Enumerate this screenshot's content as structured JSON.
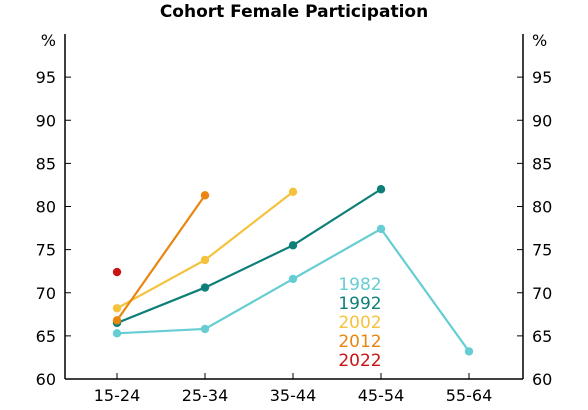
{
  "chart_data": {
    "type": "line",
    "title": "Cohort Female Participation",
    "unit_label": "%",
    "categories": [
      "15-24",
      "25-34",
      "35-44",
      "45-54",
      "55-64"
    ],
    "ylim": [
      60,
      100
    ],
    "yticks": [
      60,
      65,
      70,
      75,
      80,
      85,
      90,
      95
    ],
    "grid": false,
    "legend_position": "inside-lower-right",
    "series": [
      {
        "name": "1982",
        "color": "#66cdd3",
        "values": [
          65.3,
          65.8,
          71.6,
          77.4,
          63.2
        ]
      },
      {
        "name": "1992",
        "color": "#0d7f78",
        "values": [
          66.5,
          70.6,
          75.5,
          82.0,
          null
        ]
      },
      {
        "name": "2002",
        "color": "#f6c23e",
        "values": [
          68.2,
          73.8,
          81.7,
          null,
          null
        ]
      },
      {
        "name": "2012",
        "color": "#e8860f",
        "values": [
          66.8,
          81.3,
          null,
          null,
          null
        ]
      },
      {
        "name": "2022",
        "color": "#c81414",
        "values": [
          72.4,
          null,
          null,
          null,
          null
        ]
      }
    ]
  }
}
